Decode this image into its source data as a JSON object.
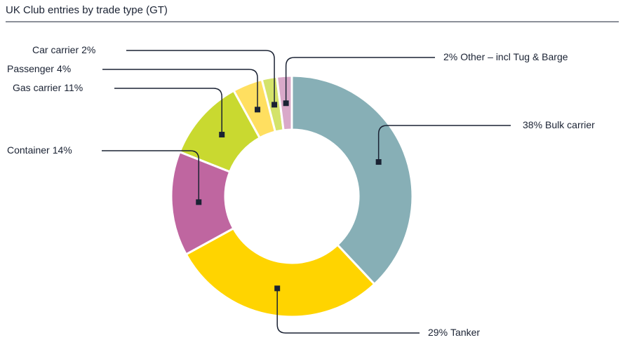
{
  "chart_data": {
    "type": "donut",
    "title": "UK Club entries by trade type (GT)",
    "categories": [
      "Bulk carrier",
      "Tanker",
      "Container",
      "Gas carrier",
      "Passenger",
      "Car carrier",
      "Other – incl Tug & Barge"
    ],
    "values": [
      38,
      29,
      14,
      11,
      4,
      2,
      2
    ],
    "value_labels": [
      "38%",
      "29%",
      "14%",
      "11%",
      "4%",
      "2%",
      "2%"
    ],
    "colors": [
      "#87afb6",
      "#ffd400",
      "#bf66a0",
      "#c9d930",
      "#ffdf60",
      "#d4e36a",
      "#d9a9c9"
    ]
  }
}
